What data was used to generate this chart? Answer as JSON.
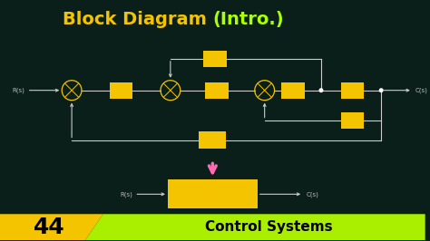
{
  "bg_color": "#0a1f1a",
  "title_main": "Block Diagram ",
  "title_paren": "(Intro.)",
  "title_color_main": "#f5c400",
  "title_color_paren": "#aaff00",
  "yellow": "#f5c400",
  "pink_arrow": "#ff69b4",
  "line_color": "#cccccc",
  "label_color": "#bbbbbb",
  "bottom_yellow": "#f5c400",
  "bottom_green": "#aaee00",
  "bottom_num": "44",
  "bottom_text": "Control Systems"
}
